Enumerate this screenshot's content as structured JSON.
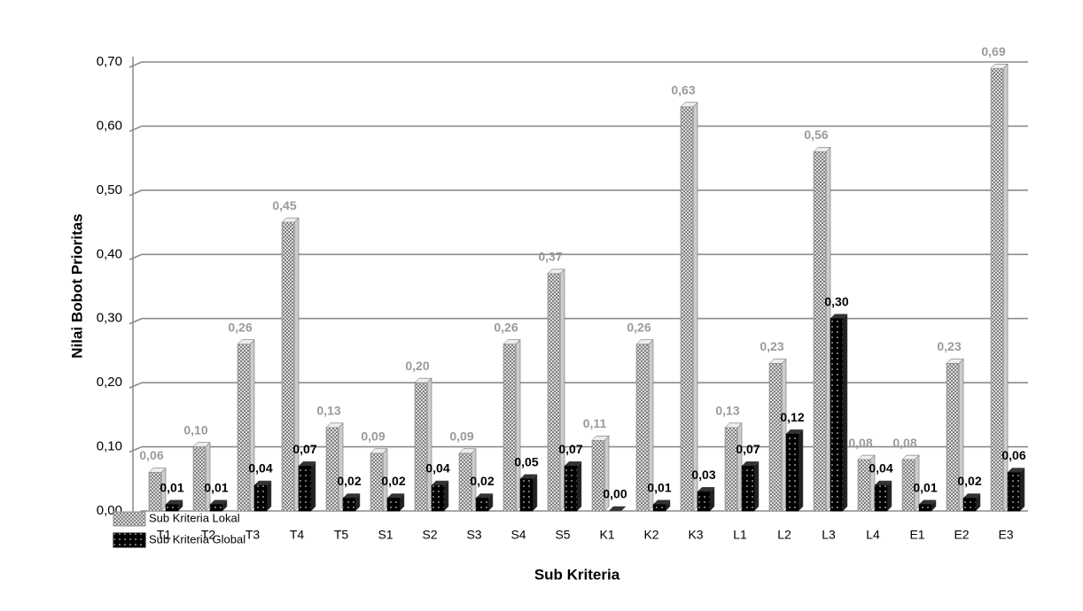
{
  "chart_data": {
    "type": "bar",
    "x_label": "Sub Kriteria",
    "y_label": "Nilai Bobot Prioritas",
    "categories": [
      "T1",
      "T2",
      "T3",
      "T4",
      "T5",
      "S1",
      "S2",
      "S3",
      "S4",
      "S5",
      "K1",
      "K2",
      "K3",
      "L1",
      "L2",
      "L3",
      "L4",
      "E1",
      "E2",
      "E3"
    ],
    "series": [
      {
        "name": "Sub Kriteria Lokal",
        "color": "#9a9a9a",
        "values": [
          0.06,
          0.1,
          0.26,
          0.45,
          0.13,
          0.09,
          0.2,
          0.09,
          0.26,
          0.37,
          0.11,
          0.26,
          0.63,
          0.13,
          0.23,
          0.56,
          0.08,
          0.08,
          0.23,
          0.69
        ],
        "value_labels": [
          "0,06",
          "0,10",
          "0,26",
          "0,45",
          "0,13",
          "0,09",
          "0,20",
          "0,09",
          "0,26",
          "0,37",
          "0,11",
          "0,26",
          "0,63",
          "0,13",
          "0,23",
          "0,56",
          "0,08",
          "0,08",
          "0,23",
          "0,69"
        ]
      },
      {
        "name": "Sub Kriteria Global",
        "color": "#000000",
        "values": [
          0.01,
          0.01,
          0.04,
          0.07,
          0.02,
          0.02,
          0.04,
          0.02,
          0.05,
          0.07,
          0.0,
          0.01,
          0.03,
          0.07,
          0.12,
          0.3,
          0.04,
          0.01,
          0.02,
          0.06
        ],
        "value_labels": [
          "0,01",
          "0,01",
          "0,04",
          "0,07",
          "0,02",
          "0,02",
          "0,04",
          "0,02",
          "0,05",
          "0,07",
          "0,00",
          "0,01",
          "0,03",
          "0,07",
          "0,12",
          "0,30",
          "0,04",
          "0,01",
          "0,02",
          "0,06"
        ]
      }
    ],
    "ylim": [
      0,
      0.7
    ],
    "yticks": [
      {
        "value": 0,
        "label": "0,00"
      },
      {
        "value": 0.1,
        "label": "0,10"
      },
      {
        "value": 0.2,
        "label": "0,20"
      },
      {
        "value": 0.3,
        "label": "0,30"
      },
      {
        "value": 0.4,
        "label": "0,40"
      },
      {
        "value": 0.5,
        "label": "0,50"
      },
      {
        "value": 0.6,
        "label": "0,60"
      },
      {
        "value": 0.7,
        "label": "0,70"
      }
    ],
    "grid": true,
    "legend": "bottom-left"
  }
}
